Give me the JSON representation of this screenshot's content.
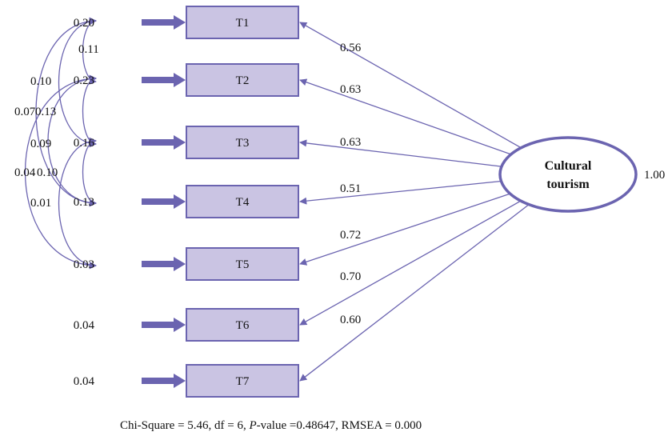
{
  "diagram": {
    "latent": {
      "label_line1": "Cultural",
      "label_line2": "tourism",
      "variance": "1.00"
    },
    "indicators": [
      {
        "label": "T1",
        "error": "0.20",
        "loading": "0.56"
      },
      {
        "label": "T2",
        "error": "0.23",
        "loading": "0.63"
      },
      {
        "label": "T3",
        "error": "0.16",
        "loading": "0.63"
      },
      {
        "label": "T4",
        "error": "0.13",
        "loading": "0.51"
      },
      {
        "label": "T5",
        "error": "0.03",
        "loading": "0.72"
      },
      {
        "label": "T6",
        "error": "0.04",
        "loading": "0.70"
      },
      {
        "label": "T7",
        "error": "0.04",
        "loading": "0.60"
      }
    ],
    "covariances": [
      {
        "from": "T1",
        "to": "T2",
        "value": "0.11"
      },
      {
        "from": "T1",
        "to": "T3",
        "value": "0.10"
      },
      {
        "from": "T1",
        "to": "T4",
        "value": "0.07"
      },
      {
        "from": "T2",
        "to": "T3",
        "value": "0.13"
      },
      {
        "from": "T2",
        "to": "T4",
        "value": "0.09"
      },
      {
        "from": "T2",
        "to": "T5",
        "value": "0.04"
      },
      {
        "from": "T3",
        "to": "T4",
        "value": "0.10"
      },
      {
        "from": "T3",
        "to": "T5",
        "value": "0.01"
      }
    ],
    "colors": {
      "box_fill": "#cac4e3",
      "stroke": "#6b64b0",
      "arrow": "#6b64b0"
    },
    "fit": {
      "prefix": "Chi-Square = 5.46, df = 6, ",
      "p_italic": "P",
      "suffix": "-value =0.48647, RMSEA = 0.000"
    }
  }
}
